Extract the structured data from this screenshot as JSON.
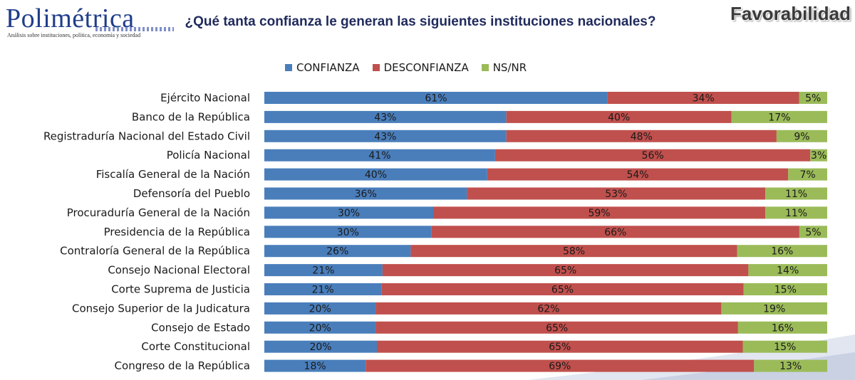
{
  "header": {
    "logo_name": "Polimétrica",
    "logo_tagline": "Análisis sobre instituciones, política, economía y sociedad",
    "badge": "Favorabilidad"
  },
  "chart_data": {
    "type": "bar",
    "orientation": "horizontal",
    "stacked": true,
    "title": "¿Qué tanta confianza le generan las siguientes instituciones nacionales?",
    "legend_position": "top",
    "categories": [
      "Ejército Nacional",
      "Banco de la República",
      "Registraduría Nacional del Estado Civil",
      "Policía Nacional",
      "Fiscalía General de la Nación",
      "Defensoría del Pueblo",
      "Procuraduría General de la Nación",
      "Presidencia de la República",
      "Contraloría General de la República",
      "Consejo Nacional Electoral",
      "Corte Suprema de Justicia",
      "Consejo Superior de la Judicatura",
      "Consejo de Estado",
      "Corte Constitucional",
      "Congreso de la República"
    ],
    "series": [
      {
        "name": "CONFIANZA",
        "color": "#4a7ebb",
        "values": [
          61,
          43,
          43,
          41,
          40,
          36,
          30,
          30,
          26,
          21,
          21,
          20,
          20,
          20,
          18
        ]
      },
      {
        "name": "DESCONFIANZA",
        "color": "#c0504d",
        "values": [
          34,
          40,
          48,
          56,
          54,
          53,
          59,
          66,
          58,
          65,
          65,
          62,
          65,
          65,
          69
        ]
      },
      {
        "name": "NS/NR",
        "color": "#9bbb59",
        "values": [
          5,
          17,
          9,
          3,
          7,
          11,
          11,
          5,
          16,
          14,
          15,
          19,
          16,
          15,
          13
        ]
      }
    ],
    "value_suffix": "%"
  }
}
